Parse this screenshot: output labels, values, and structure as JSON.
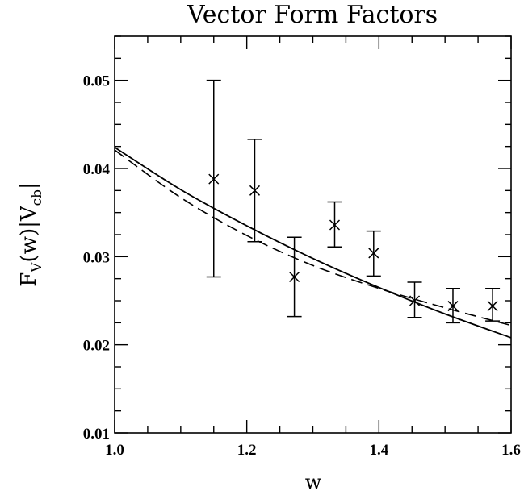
{
  "chart_data": {
    "type": "scatter",
    "title": "Vector Form Factors",
    "xlabel": "w",
    "ylabel": {
      "main": "F",
      "sub1": "V",
      "mid": "(w)|V",
      "sub2": "cb",
      "end": "|"
    },
    "xlim": [
      1.0,
      1.6
    ],
    "ylim": [
      0.01,
      0.055
    ],
    "x_ticks": [
      "1.0",
      "1.2",
      "1.4",
      "1.6"
    ],
    "y_ticks": [
      "0.01",
      "0.02",
      "0.03",
      "0.04",
      "0.05"
    ],
    "grid": false,
    "legend": "none",
    "series": [
      {
        "kind": "points-with-errors",
        "marker": "x",
        "points": [
          {
            "x": 1.15,
            "y": 0.0388,
            "ylow": 0.0277,
            "yhigh": 0.05
          },
          {
            "x": 1.212,
            "y": 0.0375,
            "ylow": 0.0317,
            "yhigh": 0.0433
          },
          {
            "x": 1.272,
            "y": 0.0277,
            "ylow": 0.0232,
            "yhigh": 0.0322
          },
          {
            "x": 1.333,
            "y": 0.0336,
            "ylow": 0.0311,
            "yhigh": 0.0362
          },
          {
            "x": 1.392,
            "y": 0.0304,
            "ylow": 0.0278,
            "yhigh": 0.0329
          },
          {
            "x": 1.454,
            "y": 0.025,
            "ylow": 0.0231,
            "yhigh": 0.0271
          },
          {
            "x": 1.512,
            "y": 0.0244,
            "ylow": 0.0225,
            "yhigh": 0.0264
          },
          {
            "x": 1.572,
            "y": 0.0244,
            "ylow": 0.0227,
            "yhigh": 0.0264
          }
        ]
      },
      {
        "kind": "line",
        "style": "solid",
        "x": [
          1.0,
          1.1,
          1.2,
          1.3,
          1.4,
          1.5,
          1.6
        ],
        "y": [
          0.0424,
          0.0376,
          0.0335,
          0.0298,
          0.0265,
          0.0235,
          0.0208
        ]
      },
      {
        "kind": "line",
        "style": "dashed",
        "x": [
          1.0,
          1.1,
          1.2,
          1.3,
          1.4,
          1.5,
          1.6
        ],
        "y": [
          0.0421,
          0.0367,
          0.0324,
          0.029,
          0.0264,
          0.0242,
          0.0222
        ]
      }
    ]
  }
}
